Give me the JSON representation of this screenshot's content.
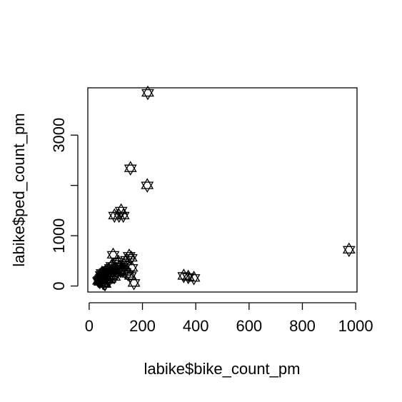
{
  "chart_data": {
    "type": "scatter",
    "title": "",
    "xlabel": "labike$bike_count_pm",
    "ylabel": "labike$ped_count_pm",
    "xlim": [
      -5,
      1005
    ],
    "ylim": [
      -120,
      3940
    ],
    "x_ticks": [
      0,
      200,
      400,
      600,
      800,
      1000
    ],
    "x_tick_labels": [
      "0",
      "200",
      "400",
      "600",
      "800",
      "1000"
    ],
    "y_ticks": [
      0,
      1000,
      2000,
      3000
    ],
    "y_tick_labels": [
      "0",
      "1000",
      "",
      "3000"
    ],
    "grid": false,
    "marker": "star-of-david",
    "x": [
      220,
      155,
      218,
      95,
      120,
      112,
      128,
      975,
      355,
      372,
      393,
      90,
      150,
      158,
      140,
      110,
      105,
      85,
      80,
      130,
      72,
      68,
      60,
      65,
      55,
      50,
      48,
      45,
      42,
      38,
      35,
      40,
      52,
      58,
      62,
      75,
      88,
      100,
      115,
      125,
      135,
      145,
      155,
      168,
      95,
      78,
      70,
      55,
      45,
      60,
      85,
      100,
      118,
      160,
      48,
      66
    ],
    "y": [
      3840,
      2340,
      2000,
      1400,
      1500,
      1400,
      1400,
      720,
      200,
      180,
      160,
      620,
      600,
      560,
      520,
      480,
      440,
      400,
      360,
      420,
      320,
      300,
      280,
      260,
      240,
      200,
      180,
      160,
      140,
      120,
      100,
      80,
      60,
      40,
      220,
      260,
      300,
      340,
      380,
      320,
      280,
      240,
      200,
      60,
      180,
      140,
      120,
      100,
      220,
      40,
      200,
      260,
      300,
      360,
      260,
      180
    ]
  }
}
